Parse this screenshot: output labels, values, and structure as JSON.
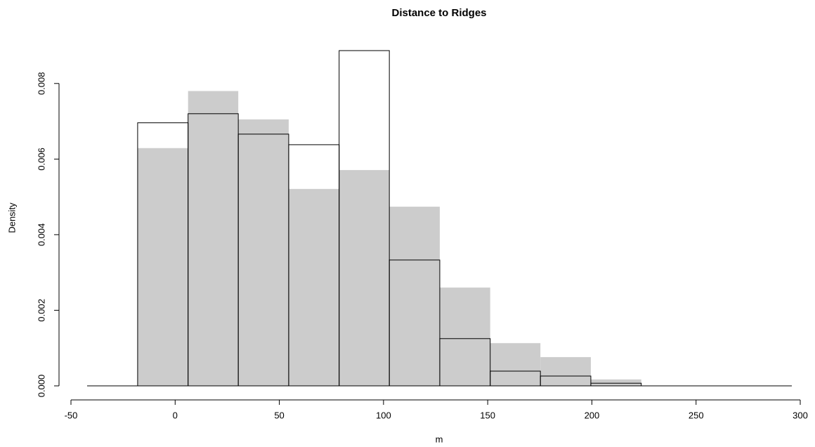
{
  "chart_data": {
    "type": "histogram",
    "title": "Distance to Ridges",
    "x_label": "m",
    "y_label": "Density",
    "bins": [
      -18,
      6.2,
      30.3,
      54.5,
      78.7,
      102.8,
      127,
      151.2,
      175.3,
      199.5,
      223.7
    ],
    "series": [
      {
        "color": "#cccccc",
        "style": "filled",
        "values": [
          0.00629,
          0.0078,
          0.00705,
          0.00521,
          0.00571,
          0.00474,
          0.0026,
          0.00113,
          0.00076,
          0.00017
        ]
      },
      {
        "color": "#000000",
        "style": "outline",
        "values": [
          0.00696,
          0.0072,
          0.00666,
          0.00638,
          0.00887,
          0.00333,
          0.00125,
          0.00039,
          0.00026,
          7e-05
        ]
      }
    ],
    "xlim": [
      -50,
      300
    ],
    "xticks": [
      -50,
      0,
      50,
      100,
      150,
      200,
      250,
      300
    ],
    "ylim": [
      0,
      0.009
    ],
    "yticks": [
      {
        "value": 0,
        "label": "0.000"
      },
      0.002,
      0.004,
      0.006,
      0.008
    ]
  }
}
